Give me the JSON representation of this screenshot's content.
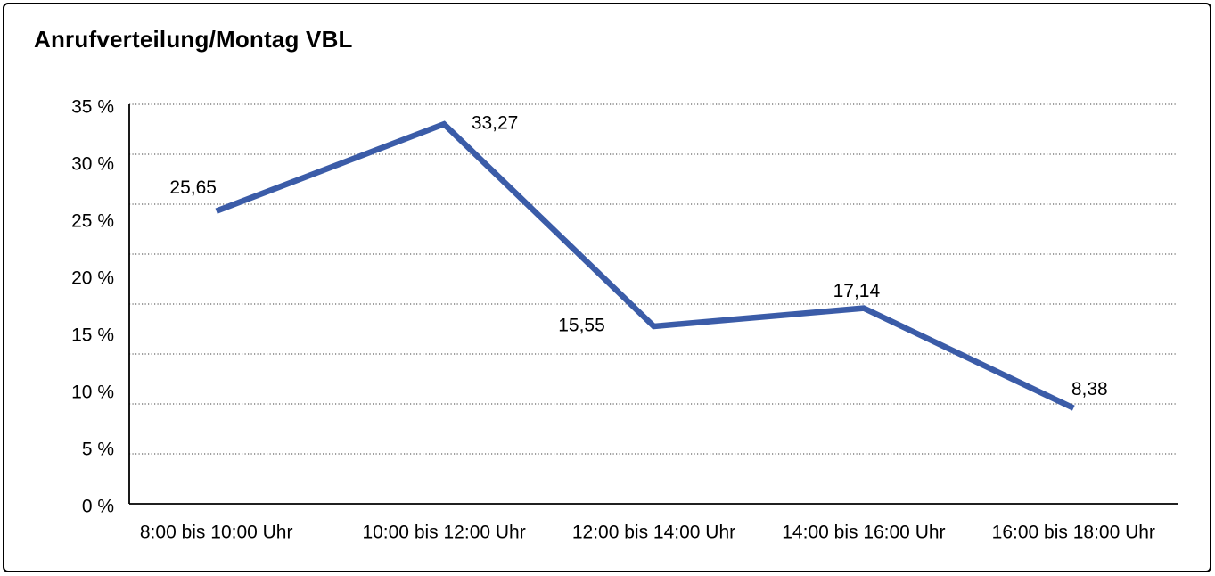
{
  "page": {
    "title": "Anrufverteilung/Montag VBL"
  },
  "chart_data": {
    "type": "line",
    "title": "Anrufverteilung/Montag VBL",
    "categories": [
      "8:00 bis 10:00 Uhr",
      "10:00 bis 12:00 Uhr",
      "12:00 bis 14:00 Uhr",
      "14:00 bis 16:00 Uhr",
      "16:00 bis 18:00 Uhr"
    ],
    "values": [
      25.65,
      33.27,
      15.55,
      17.14,
      8.38
    ],
    "value_labels": [
      "25,65",
      "33,27",
      "15,55",
      "17,14",
      "8,38"
    ],
    "xlabel": "",
    "ylabel": "",
    "ylim": [
      0,
      35
    ],
    "y_tick_values": [
      0,
      5,
      10,
      15,
      20,
      25,
      30,
      35
    ],
    "y_ticks": [
      "0 %",
      "5 %",
      "10 %",
      "15 %",
      "20 %",
      "25 %",
      "30 %",
      "35 %"
    ],
    "gridline_divisions": 8,
    "grid_style": "horizontal-dotted",
    "legend": "none",
    "line_color": "#3B5CA8",
    "axis_color": "#000000",
    "grid_color": "#3f3f3f"
  }
}
